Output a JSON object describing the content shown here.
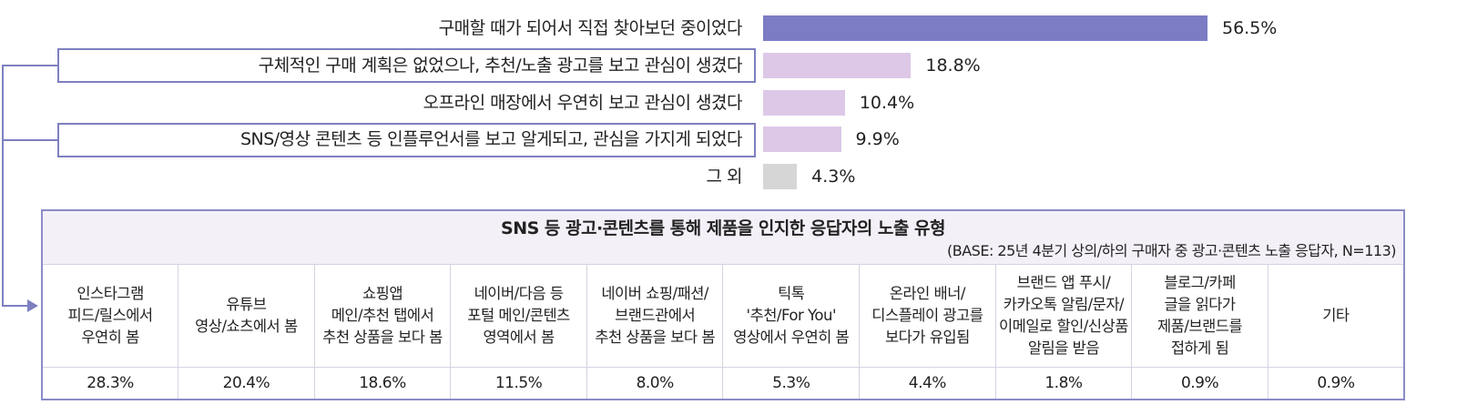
{
  "chart_data": {
    "type": "bar",
    "orientation": "horizontal",
    "categories": [
      "구매할 때가 되어서 직접 찾아보던 중이었다",
      "구체적인 구매 계획은 없었으나, 추천/노출 광고를 보고 관심이 생겼다",
      "오프라인 매장에서 우연히 보고 관심이 생겼다",
      "SNS/영상 콘텐츠 등 인플루언서를 보고 알게되고, 관심을 가지게 되었다",
      "그 외"
    ],
    "values": [
      56.5,
      18.8,
      10.4,
      9.9,
      4.3
    ],
    "value_labels": [
      "56.5%",
      "18.8%",
      "10.4%",
      "9.9%",
      "4.3%"
    ],
    "highlighted": [
      1,
      3
    ],
    "colors": [
      "#7b7cc4",
      "#ddc9e7",
      "#ddc9e7",
      "#ddc9e7",
      "#d6d6d6"
    ],
    "unit": "%"
  },
  "table": {
    "title": "SNS 등 광고·콘텐츠를 통해 제품을 인지한 응답자의 노출 유형",
    "base": "(BASE: 25년 4분기 상의/하의 구매자 중 광고·콘텐츠 노출 응답자, N=113)",
    "columns": [
      "인스타그램\n피드/릴스에서\n우연히 봄",
      "유튜브\n영상/쇼츠에서 봄",
      "쇼핑앱\n메인/추천 탭에서\n추천 상품을 보다 봄",
      "네이버/다음 등\n포털 메인/콘텐츠\n영역에서 봄",
      "네이버 쇼핑/패션/\n브랜드관에서\n추천 상품을 보다 봄",
      "틱톡\n'추천/For You'\n영상에서 우연히 봄",
      "온라인 배너/\n디스플레이 광고를\n보다가 유입됨",
      "브랜드 앱 푸시/\n카카오톡 알림/문자/\n이메일로 할인/신상품\n알림을 받음",
      "블로그/카페\n글을 읽다가\n제품/브랜드를\n접하게 됨",
      "기타"
    ],
    "values": [
      "28.3%",
      "20.4%",
      "18.6%",
      "11.5%",
      "8.0%",
      "5.3%",
      "4.4%",
      "1.8%",
      "0.9%",
      "0.9%"
    ]
  }
}
